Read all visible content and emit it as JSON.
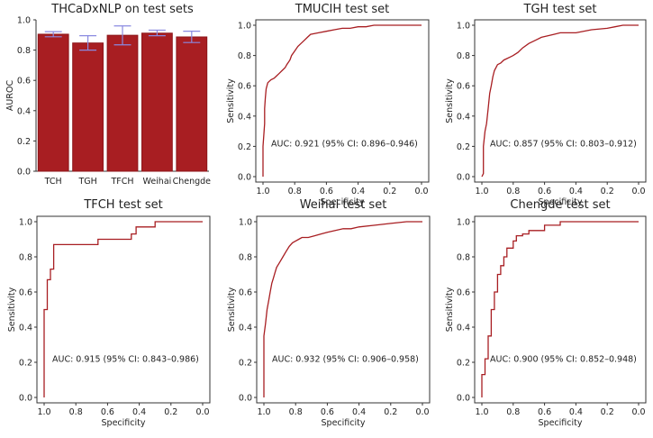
{
  "colors": {
    "bar": "#a81e22",
    "bar_edge": "#8c1519",
    "error_bar": "#8a8ae0",
    "roc_line": "#a81e22",
    "axis": "#333333"
  },
  "chart_data": [
    {
      "type": "bar",
      "title": "THCaDxNLP on test sets",
      "xlabel": "",
      "ylabel": "AUROC",
      "ylim": [
        0,
        1.0
      ],
      "yticks": [
        "0.0",
        "0.2",
        "0.4",
        "0.6",
        "0.8",
        "1.0"
      ],
      "categories": [
        "TCH",
        "TGH",
        "TFCH",
        "Weihai",
        "Chengde"
      ],
      "values": [
        0.905,
        0.847,
        0.898,
        0.912,
        0.887
      ],
      "ci_low": [
        0.888,
        0.8,
        0.835,
        0.895,
        0.85
      ],
      "ci_high": [
        0.922,
        0.895,
        0.96,
        0.932,
        0.925
      ]
    },
    {
      "type": "line",
      "title": "TMUCIH test set",
      "xlabel": "Specificity",
      "ylabel": "Sensitivity",
      "xlim": [
        1.0,
        0.0
      ],
      "ylim": [
        0.0,
        1.0
      ],
      "xticks": [
        "1.0",
        "0.8",
        "0.6",
        "0.4",
        "0.2",
        "0.0"
      ],
      "yticks": [
        "0.0",
        "0.2",
        "0.4",
        "0.6",
        "0.8",
        "1.0"
      ],
      "annotation": "AUC: 0.921 (95% CI: 0.896–0.946)",
      "specificity": [
        1.0,
        1.0,
        0.99,
        0.99,
        0.985,
        0.98,
        0.975,
        0.97,
        0.96,
        0.95,
        0.93,
        0.92,
        0.9,
        0.88,
        0.86,
        0.85,
        0.83,
        0.82,
        0.8,
        0.78,
        0.76,
        0.74,
        0.72,
        0.7,
        0.65,
        0.6,
        0.55,
        0.5,
        0.45,
        0.4,
        0.35,
        0.3,
        0.2,
        0.1,
        0.0
      ],
      "sensitivity": [
        0.0,
        0.2,
        0.35,
        0.45,
        0.52,
        0.58,
        0.6,
        0.62,
        0.63,
        0.64,
        0.65,
        0.66,
        0.68,
        0.7,
        0.72,
        0.74,
        0.77,
        0.8,
        0.83,
        0.86,
        0.88,
        0.9,
        0.92,
        0.94,
        0.95,
        0.96,
        0.97,
        0.98,
        0.98,
        0.99,
        0.99,
        1.0,
        1.0,
        1.0,
        1.0
      ]
    },
    {
      "type": "line",
      "title": "TGH test set",
      "xlabel": "Specificity",
      "ylabel": "Sensitivity",
      "xlim": [
        1.0,
        0.0
      ],
      "ylim": [
        0.0,
        1.0
      ],
      "xticks": [
        "1.0",
        "0.8",
        "0.6",
        "0.4",
        "0.2",
        "0.0"
      ],
      "yticks": [
        "0.0",
        "0.2",
        "0.4",
        "0.6",
        "0.8",
        "1.0"
      ],
      "annotation": "AUC: 0.857 (95% CI: 0.803–0.912)",
      "specificity": [
        1.0,
        0.99,
        0.99,
        0.98,
        0.97,
        0.96,
        0.95,
        0.94,
        0.93,
        0.92,
        0.9,
        0.88,
        0.86,
        0.84,
        0.82,
        0.8,
        0.77,
        0.74,
        0.7,
        0.66,
        0.62,
        0.58,
        0.54,
        0.5,
        0.45,
        0.4,
        0.3,
        0.2,
        0.15,
        0.1,
        0.05,
        0.0
      ],
      "sensitivity": [
        0.0,
        0.02,
        0.2,
        0.3,
        0.35,
        0.45,
        0.55,
        0.6,
        0.66,
        0.7,
        0.74,
        0.75,
        0.77,
        0.78,
        0.79,
        0.8,
        0.82,
        0.85,
        0.88,
        0.9,
        0.92,
        0.93,
        0.94,
        0.95,
        0.95,
        0.95,
        0.97,
        0.98,
        0.99,
        1.0,
        1.0,
        1.0
      ]
    },
    {
      "type": "line",
      "title": "TFCH test set",
      "xlabel": "Specificity",
      "ylabel": "Sensitivity",
      "xlim": [
        1.0,
        0.0
      ],
      "ylim": [
        0.0,
        1.0
      ],
      "xticks": [
        "1.0",
        "0.8",
        "0.6",
        "0.4",
        "0.2",
        "0.0"
      ],
      "yticks": [
        "0.0",
        "0.2",
        "0.4",
        "0.6",
        "0.8",
        "1.0"
      ],
      "annotation": "AUC: 0.915 (95% CI: 0.843–0.986)",
      "specificity": [
        1.0,
        1.0,
        0.98,
        0.98,
        0.96,
        0.96,
        0.94,
        0.94,
        0.66,
        0.66,
        0.45,
        0.45,
        0.42,
        0.42,
        0.3,
        0.3,
        0.0
      ],
      "sensitivity": [
        0.0,
        0.5,
        0.5,
        0.67,
        0.67,
        0.73,
        0.73,
        0.87,
        0.87,
        0.9,
        0.9,
        0.93,
        0.93,
        0.97,
        0.97,
        1.0,
        1.0
      ]
    },
    {
      "type": "line",
      "title": "Weihai test set",
      "xlabel": "Specificity",
      "ylabel": "Sensitivity",
      "xlim": [
        1.0,
        0.0
      ],
      "ylim": [
        0.0,
        1.0
      ],
      "xticks": [
        "1.0",
        "0.8",
        "0.6",
        "0.4",
        "0.2",
        "0.0"
      ],
      "yticks": [
        "0.0",
        "0.2",
        "0.4",
        "0.6",
        "0.8",
        "1.0"
      ],
      "annotation": "AUC: 0.932 (95% CI: 0.906–0.958)",
      "specificity": [
        1.0,
        1.0,
        0.99,
        0.98,
        0.97,
        0.96,
        0.95,
        0.94,
        0.93,
        0.92,
        0.9,
        0.88,
        0.86,
        0.84,
        0.82,
        0.8,
        0.78,
        0.76,
        0.72,
        0.68,
        0.64,
        0.6,
        0.55,
        0.5,
        0.45,
        0.4,
        0.3,
        0.2,
        0.1,
        0.0
      ],
      "sensitivity": [
        0.0,
        0.35,
        0.42,
        0.5,
        0.55,
        0.6,
        0.65,
        0.68,
        0.71,
        0.74,
        0.77,
        0.8,
        0.83,
        0.86,
        0.88,
        0.89,
        0.9,
        0.91,
        0.91,
        0.92,
        0.93,
        0.94,
        0.95,
        0.96,
        0.96,
        0.97,
        0.98,
        0.99,
        1.0,
        1.0
      ]
    },
    {
      "type": "line",
      "title": "Chengde test set",
      "xlabel": "Specificity",
      "ylabel": "Sensitivity",
      "xlim": [
        1.0,
        0.0
      ],
      "ylim": [
        0.0,
        1.0
      ],
      "xticks": [
        "1.0",
        "0.8",
        "0.6",
        "0.4",
        "0.2",
        "0.0"
      ],
      "yticks": [
        "0.0",
        "0.2",
        "0.4",
        "0.6",
        "0.8",
        "1.0"
      ],
      "annotation": "AUC: 0.900 (95% CI: 0.852–0.948)",
      "specificity": [
        1.0,
        1.0,
        0.98,
        0.98,
        0.96,
        0.96,
        0.94,
        0.94,
        0.92,
        0.92,
        0.9,
        0.9,
        0.88,
        0.88,
        0.86,
        0.86,
        0.84,
        0.84,
        0.8,
        0.8,
        0.78,
        0.78,
        0.74,
        0.74,
        0.7,
        0.7,
        0.6,
        0.6,
        0.5,
        0.5,
        0.0
      ],
      "sensitivity": [
        0.0,
        0.13,
        0.13,
        0.22,
        0.22,
        0.35,
        0.35,
        0.5,
        0.5,
        0.6,
        0.6,
        0.7,
        0.7,
        0.75,
        0.75,
        0.8,
        0.8,
        0.85,
        0.85,
        0.89,
        0.89,
        0.92,
        0.92,
        0.93,
        0.93,
        0.95,
        0.95,
        0.98,
        0.98,
        1.0,
        1.0
      ]
    }
  ]
}
